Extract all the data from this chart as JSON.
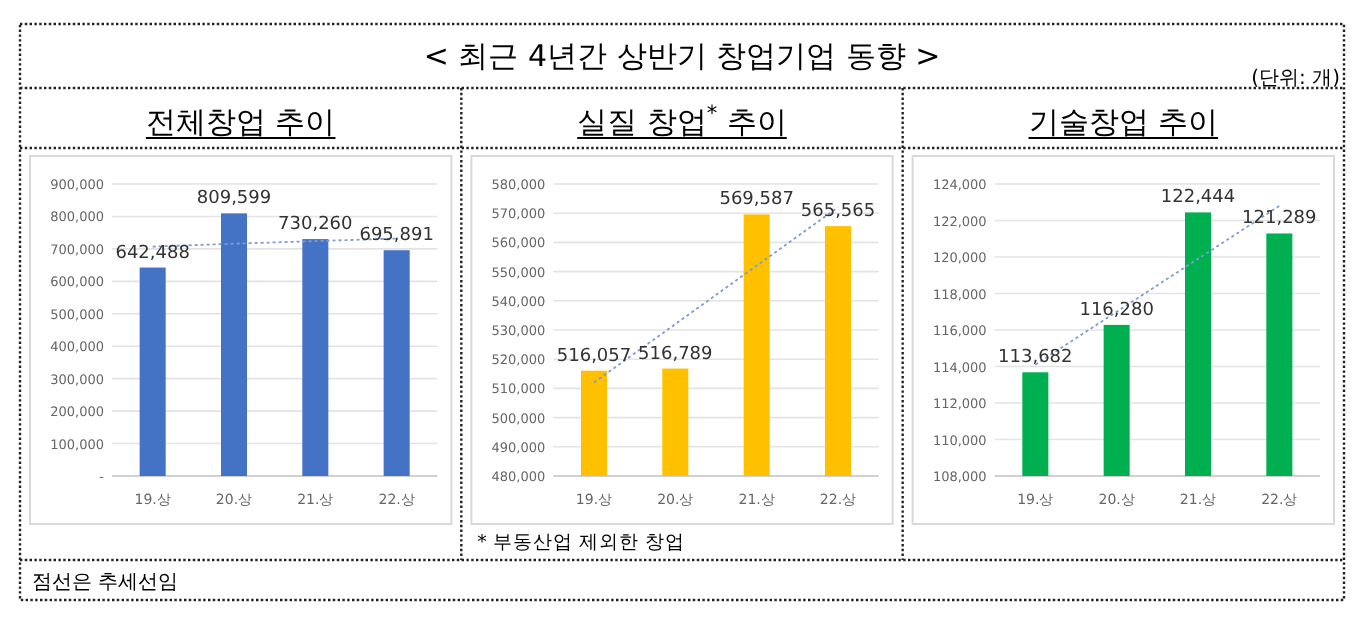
{
  "chart_data": [
    {
      "type": "other",
      "title": "< 최근 4년간 상반기 창업기업 동향 >",
      "annotations": [
        "(단위: 개)",
        "점선은 추세선임"
      ]
    },
    {
      "type": "bar",
      "title": "전체창업 추이",
      "categories": [
        "19.상",
        "20.상",
        "21.상",
        "22.상"
      ],
      "grid": "y",
      "series": [
        {
          "color": "#4472c4",
          "values": [
            642488,
            809599,
            730260,
            695891
          ],
          "value_labels": [
            "642,488",
            "809,599",
            "730,260",
            "695,891"
          ]
        },
        {
          "type": "line",
          "color": "#7f9bd0",
          "line_style": "dotted",
          "values": [
            707000,
            716000,
            724000,
            732000
          ]
        }
      ],
      "ylim": [
        0,
        900000
      ],
      "yticks": [
        {
          "value": 0,
          "label": "-"
        },
        {
          "value": 100000,
          "label": "100,000"
        },
        {
          "value": 200000,
          "label": "200,000"
        },
        {
          "value": 300000,
          "label": "300,000"
        },
        {
          "value": 400000,
          "label": "400,000"
        },
        {
          "value": 500000,
          "label": "500,000"
        },
        {
          "value": 600000,
          "label": "600,000"
        },
        {
          "value": 700000,
          "label": "700,000"
        },
        {
          "value": 800000,
          "label": "800,000"
        },
        {
          "value": 900000,
          "label": "900,000"
        }
      ]
    },
    {
      "type": "bar",
      "title": "실질 창업$^{*}$ 추이",
      "categories": [
        "19.상",
        "20.상",
        "21.상",
        "22.상"
      ],
      "grid": "y",
      "series": [
        {
          "color": "#ffc000",
          "values": [
            516057,
            516789,
            569587,
            565565
          ],
          "value_labels": [
            "516,057",
            "516,789",
            "569,587",
            "565,565"
          ]
        },
        {
          "type": "line",
          "color": "#7f9bd0",
          "line_style": "dotted",
          "values": [
            512000,
            532000,
            552000,
            572000
          ]
        }
      ],
      "ylim": [
        480000,
        580000
      ],
      "yticks": [
        {
          "value": 480000,
          "label": "480,000"
        },
        {
          "value": 490000,
          "label": "490,000"
        },
        {
          "value": 500000,
          "label": "500,000"
        },
        {
          "value": 510000,
          "label": "510,000"
        },
        {
          "value": 520000,
          "label": "520,000"
        },
        {
          "value": 530000,
          "label": "530,000"
        },
        {
          "value": 540000,
          "label": "540,000"
        },
        {
          "value": 550000,
          "label": "550,000"
        },
        {
          "value": 560000,
          "label": "560,000"
        },
        {
          "value": 570000,
          "label": "570,000"
        },
        {
          "value": 580000,
          "label": "580,000"
        }
      ],
      "annotations": [
        "* 부동산업 제외한 창업"
      ]
    },
    {
      "type": "bar",
      "title": "기술창업 추이",
      "categories": [
        "19.상",
        "20.상",
        "21.상",
        "22.상"
      ],
      "grid": "y",
      "series": [
        {
          "color": "#00b050",
          "values": [
            113682,
            116280,
            122444,
            121289
          ],
          "value_labels": [
            "113,682",
            "116,280",
            "122,444",
            "121,289"
          ]
        },
        {
          "type": "line",
          "color": "#7f9bd0",
          "line_style": "dotted",
          "values": [
            114100,
            117000,
            119900,
            122800
          ]
        }
      ],
      "ylim": [
        108000,
        124000
      ],
      "yticks": [
        {
          "value": 108000,
          "label": "108,000"
        },
        {
          "value": 110000,
          "label": "110,000"
        },
        {
          "value": 112000,
          "label": "112,000"
        },
        {
          "value": 114000,
          "label": "114,000"
        },
        {
          "value": 116000,
          "label": "116,000"
        },
        {
          "value": 118000,
          "label": "118,000"
        },
        {
          "value": 120000,
          "label": "120,000"
        },
        {
          "value": 122000,
          "label": "122,000"
        },
        {
          "value": 124000,
          "label": "124,000"
        }
      ]
    }
  ]
}
